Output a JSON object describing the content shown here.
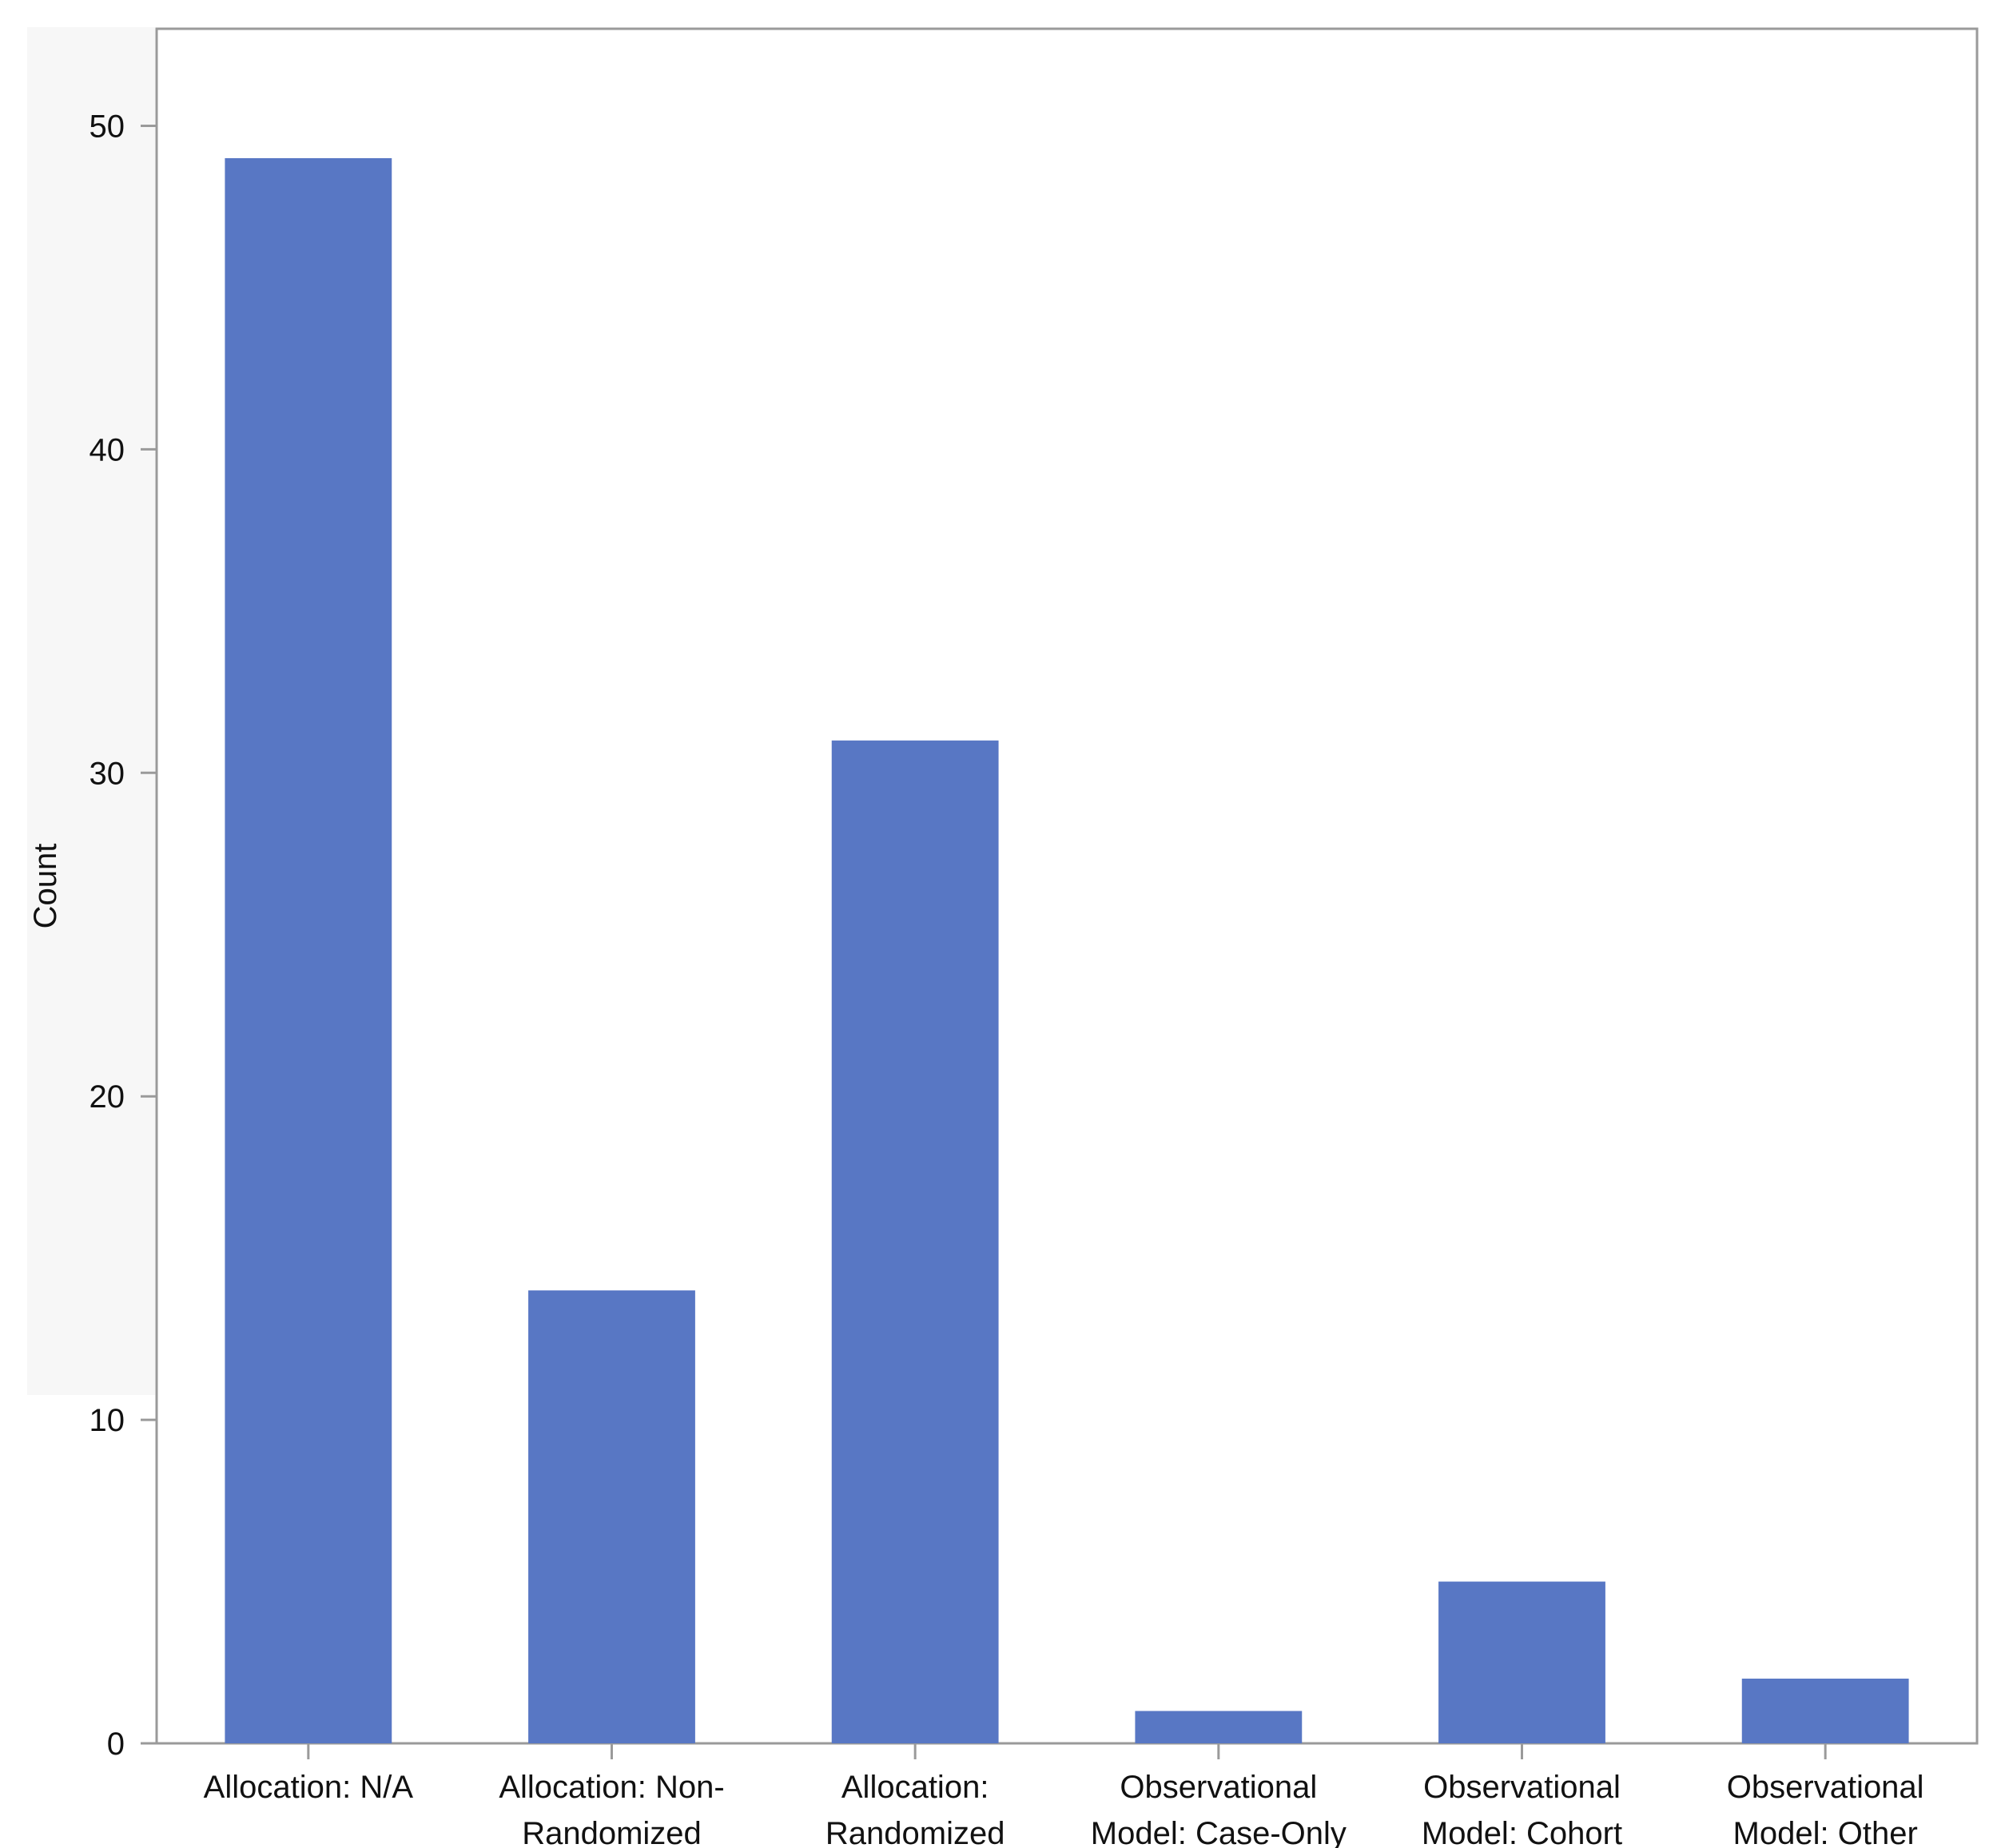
{
  "chart_data": {
    "type": "bar",
    "title": "",
    "xlabel": "",
    "ylabel": "Count",
    "ylim": [
      0,
      53
    ],
    "yticks": [
      0,
      10,
      20,
      30,
      40,
      50
    ],
    "grid": false,
    "legend": "none",
    "bar_color": "#5877c4",
    "categories": [
      [
        "Allocation: N/A"
      ],
      [
        "Allocation: Non-",
        "Randomized"
      ],
      [
        "Allocation:",
        "Randomized"
      ],
      [
        "Observational",
        "Model: Case-Only"
      ],
      [
        "Observational",
        "Model: Cohort"
      ],
      [
        "Observational",
        "Model: Other"
      ]
    ],
    "values": [
      49,
      14,
      31,
      1,
      5,
      2
    ]
  }
}
